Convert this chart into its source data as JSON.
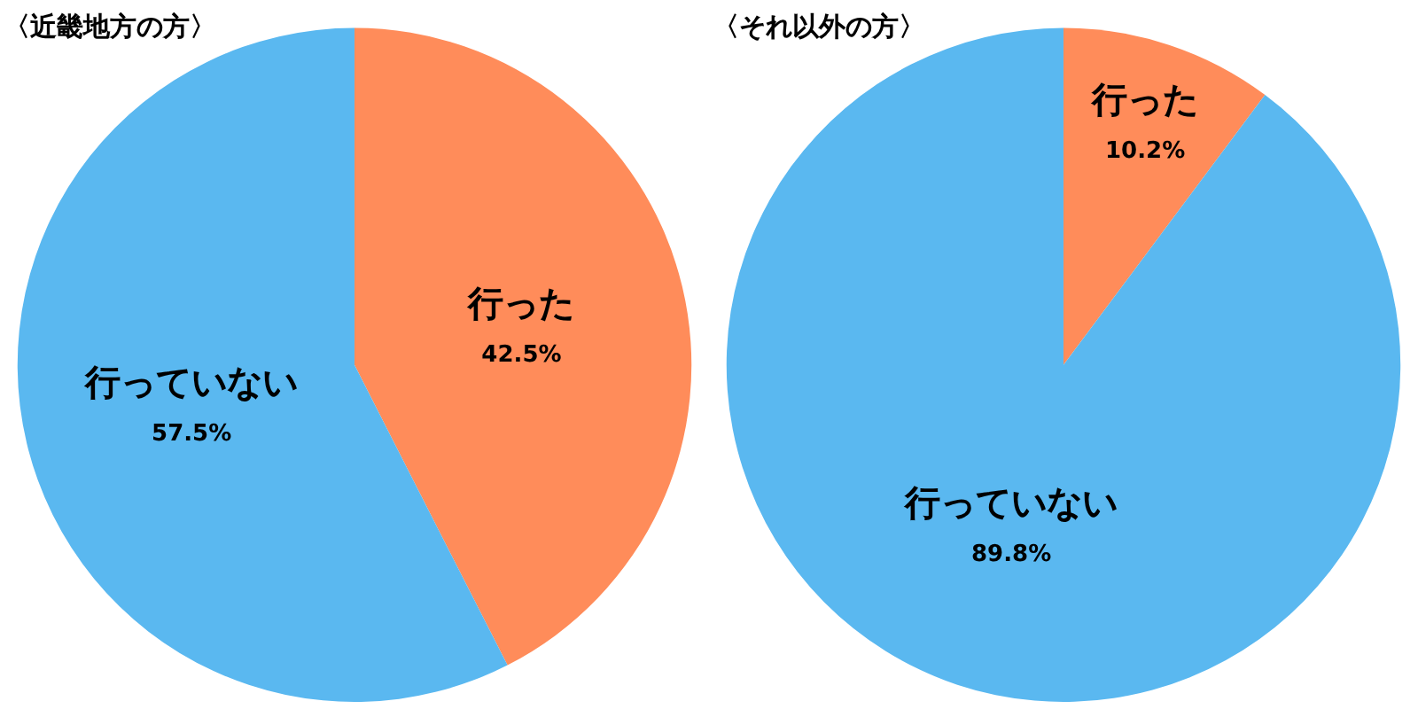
{
  "chart_data": [
    {
      "type": "pie",
      "title": "〈近畿地方の方〉",
      "categories": [
        "行った",
        "行っていない"
      ],
      "values": [
        42.5,
        57.5
      ],
      "value_labels": [
        "42.5%",
        "57.5%"
      ],
      "colors": [
        "#ff8c5a",
        "#5ab8f0"
      ],
      "legend": false
    },
    {
      "type": "pie",
      "title": "〈それ以外の方〉",
      "categories": [
        "行った",
        "行っていない"
      ],
      "values": [
        10.2,
        89.8
      ],
      "value_labels": [
        "10.2%",
        "89.8%"
      ],
      "colors": [
        "#ff8c5a",
        "#5ab8f0"
      ],
      "legend": false
    }
  ]
}
